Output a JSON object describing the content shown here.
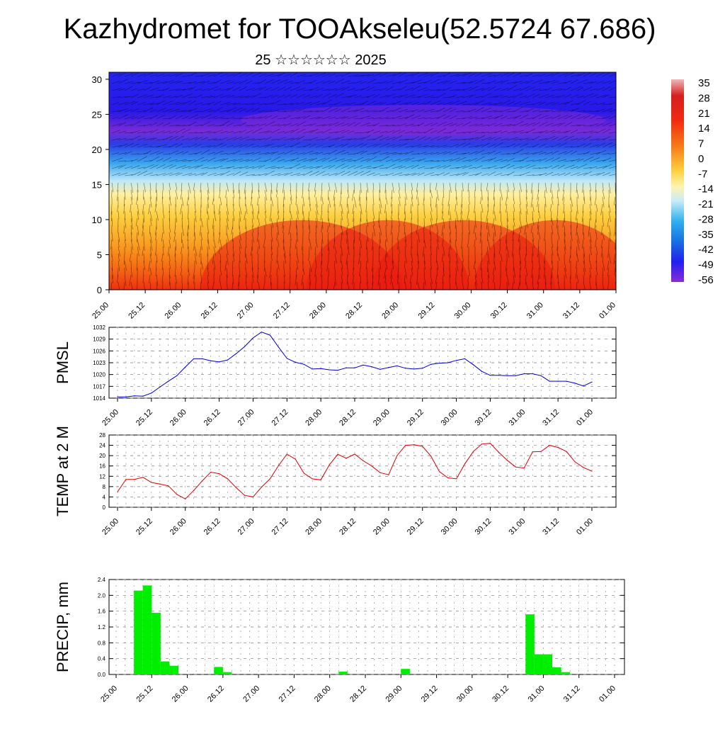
{
  "title": "Kazhydromet for TOOAkseleu(52.5724 67.686)",
  "subtitle": "25 ☆☆☆☆☆☆ 2025",
  "time_ticks": [
    "25.00",
    "25.12",
    "26.00",
    "26.12",
    "27.00",
    "27.12",
    "28.00",
    "28.12",
    "29.00",
    "29.12",
    "30.00",
    "30.12",
    "31.00",
    "31.12",
    "01.00"
  ],
  "colorbar": {
    "labels": [
      "35",
      "28",
      "21",
      "14",
      "7",
      "0",
      "-7",
      "-14",
      "-21",
      "-28",
      "-35",
      "-42",
      "-49",
      "-56"
    ],
    "colors": [
      "#e8a8a8",
      "#d42020",
      "#f02a10",
      "#f56a10",
      "#fa9a20",
      "#fdd040",
      "#fef0a0",
      "#c8ecf8",
      "#5ac8f0",
      "#1890e0",
      "#2060e0",
      "#2030f0",
      "#3010e8",
      "#8a2ad8"
    ]
  },
  "chart_data": [
    {
      "type": "heatmap",
      "name": "temperature-cross-section",
      "yticks": [
        "0",
        "5",
        "10",
        "15",
        "20",
        "25",
        "30"
      ],
      "ylim": [
        0,
        31
      ],
      "xlim": [
        0,
        168
      ],
      "vmin": -60,
      "vmax": 35
    },
    {
      "type": "line",
      "ylabel": "PMSL",
      "yticks": [
        "1014",
        "1017",
        "1020",
        "1023",
        "1026",
        "1029",
        "1032"
      ],
      "ylim": [
        1014,
        1032
      ],
      "color": "#0000cc",
      "x": [
        0,
        3,
        6,
        9,
        12,
        15,
        18,
        21,
        24,
        27,
        30,
        33,
        36,
        39,
        42,
        45,
        48,
        51,
        54,
        57,
        60,
        63,
        66,
        69,
        72,
        75,
        78,
        81,
        84,
        87,
        90,
        93,
        96,
        99,
        102,
        105,
        108,
        111,
        114,
        117,
        120,
        123,
        126,
        129,
        132,
        135,
        138,
        141,
        144,
        147,
        150,
        153,
        156,
        159,
        162,
        165,
        168
      ],
      "values": [
        1014.3,
        1014.3,
        1014.6,
        1014.5,
        1015.3,
        1016.8,
        1018.3,
        1019.7,
        1021.9,
        1024,
        1024,
        1023.5,
        1023.2,
        1023.7,
        1025.3,
        1027.1,
        1029.3,
        1030.8,
        1030,
        1027,
        1024.1,
        1023.1,
        1022.6,
        1021.4,
        1021.5,
        1021.2,
        1021.1,
        1021.7,
        1021.7,
        1022.4,
        1022,
        1021.3,
        1021.8,
        1022.2,
        1021.6,
        1021.4,
        1021.6,
        1022.6,
        1022.9,
        1023,
        1023.6,
        1024,
        1022.5,
        1020.8,
        1019.8,
        1019.8,
        1019.7,
        1019.7,
        1020.2,
        1020.2,
        1019.7,
        1018.3,
        1018.3,
        1018.3,
        1017.8,
        1017.1,
        1018.1
      ]
    },
    {
      "type": "line",
      "ylabel": "TEMP at 2 M",
      "yticks": [
        "0",
        "4",
        "8",
        "12",
        "16",
        "20",
        "24",
        "28"
      ],
      "ylim": [
        0,
        28
      ],
      "color": "#dd0000",
      "x": [
        0,
        3,
        6,
        9,
        12,
        15,
        18,
        21,
        24,
        27,
        30,
        33,
        36,
        39,
        42,
        45,
        48,
        51,
        54,
        57,
        60,
        63,
        66,
        69,
        72,
        75,
        78,
        81,
        84,
        87,
        90,
        93,
        96,
        99,
        102,
        105,
        108,
        111,
        114,
        117,
        120,
        123,
        126,
        129,
        132,
        135,
        138,
        141,
        144,
        147,
        150,
        153,
        156,
        159,
        162,
        165,
        168
      ],
      "values": [
        6,
        10.8,
        10.8,
        11.6,
        9.6,
        9,
        8.3,
        5,
        3.2,
        6.5,
        10.2,
        13.6,
        13,
        11,
        7.6,
        4.6,
        4,
        7.8,
        11,
        16.1,
        20.6,
        18.6,
        13.2,
        11,
        10.6,
        16.4,
        20.5,
        19,
        20.6,
        18,
        16,
        13.4,
        12.6,
        20,
        24,
        24.2,
        23.6,
        19.8,
        13.8,
        11.4,
        11,
        16.8,
        21.6,
        24.5,
        24.8,
        21.3,
        18.2,
        15.6,
        15.2,
        21.5,
        21.6,
        24,
        23.2,
        21.6,
        17.6,
        15.4,
        14
      ]
    },
    {
      "type": "bar",
      "ylabel": "PRECIP, mm",
      "yticks": [
        "0.0",
        "0.4",
        "0.8",
        "1.2",
        "1.6",
        "2.0",
        "2.4"
      ],
      "ylim": [
        0,
        2.4
      ],
      "color": "#00ee00",
      "bin_hours": 3,
      "x_start": [
        6,
        9,
        12,
        15,
        18,
        21,
        33,
        36,
        75,
        96,
        138,
        141,
        144,
        147,
        150
      ],
      "values": [
        2.12,
        2.25,
        1.56,
        0.33,
        0.22,
        0.0,
        0.19,
        0.06,
        0.07,
        0.14,
        1.52,
        0.51,
        0.51,
        0.18,
        0.06
      ]
    }
  ]
}
